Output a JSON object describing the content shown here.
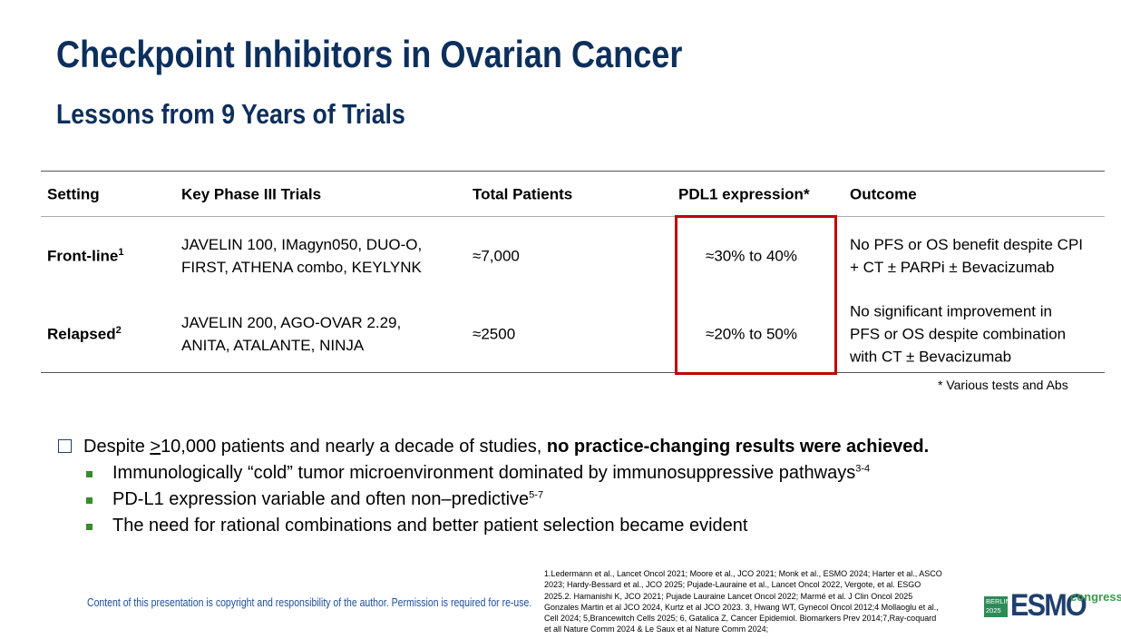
{
  "header": {
    "title": "Checkpoint Inhibitors in Ovarian Cancer",
    "subtitle": "Lessons from 9 Years of Trials"
  },
  "table": {
    "columns": [
      "Setting",
      "Key Phase III Trials",
      "Total Patients",
      "PDL1 expression*",
      "Outcome"
    ],
    "rows": [
      {
        "setting": "Front-line",
        "setting_sup": "1",
        "trials": [
          "JAVELIN 100, IMagyn050, DUO-O,",
          "FIRST, ATHENA combo, KEYLYNK"
        ],
        "patients": "≈7,000",
        "pdl1": "≈30% to 40%",
        "outcome": [
          "No PFS or OS benefit despite CPI",
          "+ CT ± PARPi ± Bevacizumab"
        ]
      },
      {
        "setting": "Relapsed",
        "setting_sup": "2",
        "trials": [
          "JAVELIN 200, AGO-OVAR 2.29,",
          "ANITA, ATALANTE, NINJA"
        ],
        "patients": "≈2500",
        "pdl1": "≈20% to 50%",
        "outcome": [
          "No significant improvement in",
          "PFS or OS despite combination",
          "with CT ± Bevacizumab"
        ]
      }
    ],
    "footnote": "* Various tests and Abs"
  },
  "bullets": {
    "main": {
      "lead": "Despite ",
      "underlined": ">",
      "rest": "10,000 patients and nearly a decade of studies, ",
      "bold": "no practice-changing results were achieved."
    },
    "sub": [
      {
        "text": "Immunologically “cold” tumor microenvironment dominated by immunosuppressive pathways",
        "sup": "3-4"
      },
      {
        "text": "PD-L1 expression variable and often non–predictive",
        "sup": "5-7"
      },
      {
        "text": "The need for rational combinations and better patient selection became evident"
      }
    ]
  },
  "references": [
    "1.Ledermann et al., Lancet Oncol 2021; Moore et al., JCO 2021; Monk et al., ESMO 2024; Harter et al., ASCO",
    "2023; Hardy-Bessard et al., JCO 2025; Pujade-Lauraine et al., Lancet Oncol 2022, Vergote, et al. ESGO",
    "2025.2. Hamanishi K, JCO 2021; Pujade Lauraine Lancet Oncol 2022; Marmé et al. J Clin Oncol 2025",
    "Gonzales Martin et al JCO 2024, Kurtz et al JCO 2023. 3, Hwang WT, Gynecol Oncol 2012;4 Mollaoglu et al.,",
    "Cell 2024; 5,Brancewitch Cells 2025; 6, Gatalica Z, Cancer Epidemiol. Biomarkers Prev 2014;7,Ray-coquard",
    "et all Nature Comm 2024 & Le Saux et al Nature Comm 2024;"
  ],
  "copyright": "Content of this presentation is copyright and responsibility of the author. Permission is required for re-use.",
  "logo": {
    "city": "BERLIN",
    "year": "2025",
    "brand": "ESMO",
    "event": "congress"
  }
}
